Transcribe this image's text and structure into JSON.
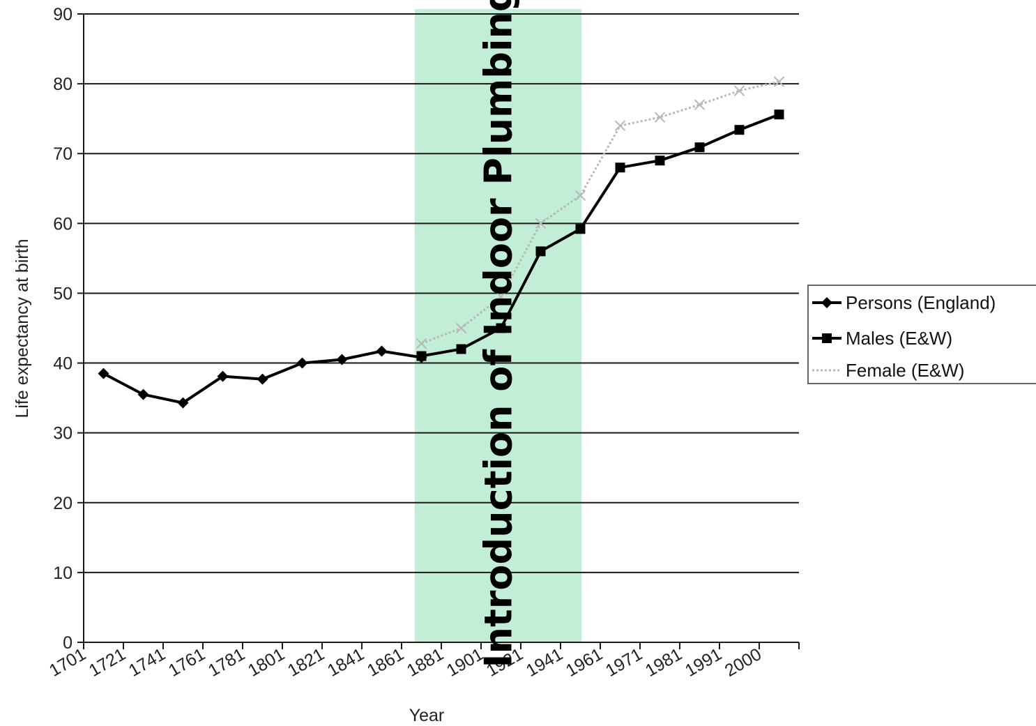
{
  "chart_data": {
    "type": "line",
    "title": "",
    "xlabel": "Year",
    "ylabel": "Life expectancy at birth",
    "ylim": [
      0,
      90
    ],
    "y_ticks": [
      "0",
      "10",
      "20",
      "30",
      "40",
      "50",
      "60",
      "70",
      "80",
      "90"
    ],
    "categories": [
      "1701",
      "1721",
      "1741",
      "1761",
      "1781",
      "1801",
      "1821",
      "1841",
      "1861",
      "1881",
      "1901",
      "1921",
      "1941",
      "1961",
      "1971",
      "1981",
      "1991",
      "2000"
    ],
    "grid": "horizontal",
    "legend_position": "right",
    "annotation": {
      "text": "Introduction of Indoor Plumbing",
      "color": "#c2eed8",
      "from_category_index": 8.33,
      "to_category_index": 12.53
    },
    "series": [
      {
        "name": "Persons (England)",
        "marker": "diamond",
        "color": "#000000",
        "x": [
          0.5,
          1.5,
          2.5,
          3.5,
          4.5,
          5.5,
          6.5,
          7.5,
          8.5
        ],
        "values": [
          38.5,
          35.5,
          34.3,
          38.1,
          37.7,
          40.0,
          40.5,
          41.7,
          40.8
        ]
      },
      {
        "name": "Males (E&W)",
        "marker": "square",
        "color": "#000000",
        "x": [
          8.5,
          9.5,
          10.5,
          11.5,
          12.5,
          13.5,
          14.5,
          15.5,
          16.5,
          17.5
        ],
        "values": [
          41.0,
          42.0,
          45.0,
          56.0,
          59.2,
          68.0,
          69.0,
          70.9,
          73.4,
          75.6
        ]
      },
      {
        "name": "Female (E&W)",
        "marker": "dotted",
        "color": "#b8b8b8",
        "x": [
          8.5,
          9.5,
          10.5,
          11.5,
          12.5,
          13.5,
          14.5,
          15.5,
          16.5,
          17.5
        ],
        "values": [
          42.8,
          45.0,
          49.5,
          60.0,
          64.0,
          74.0,
          75.2,
          77.0,
          79.0,
          80.3
        ]
      }
    ]
  }
}
